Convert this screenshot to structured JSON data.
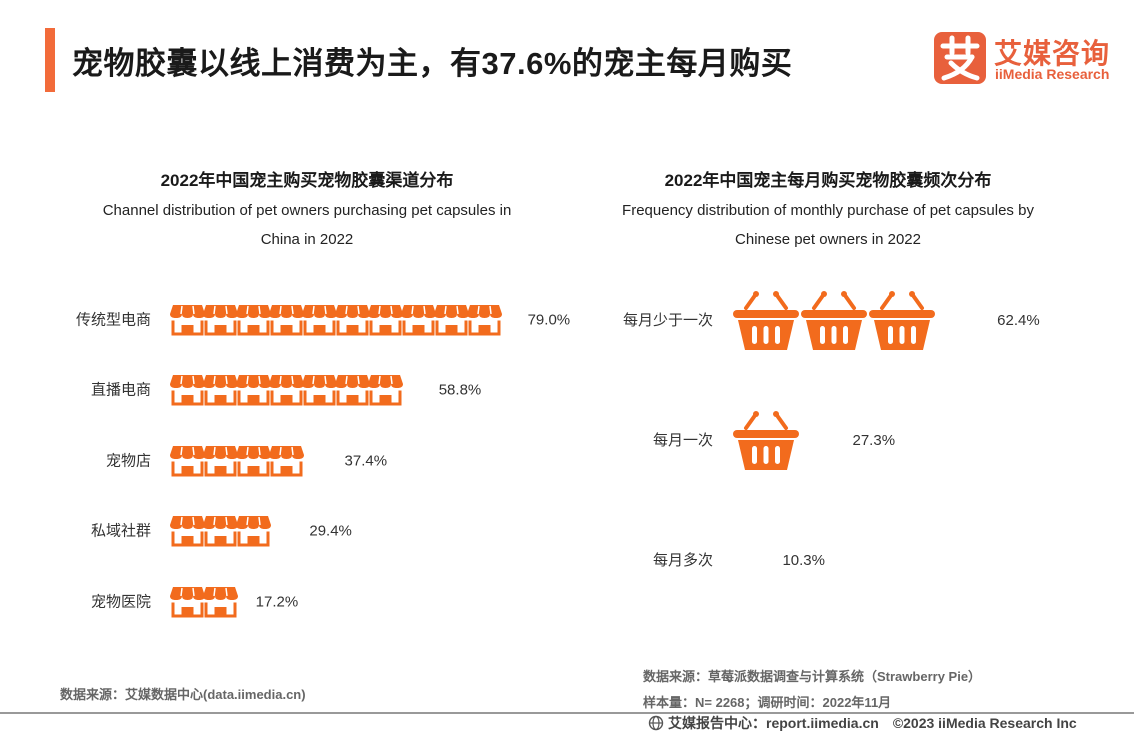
{
  "header": {
    "title": "宠物胶囊以线上消费为主，有37.6%的宠主每月购买"
  },
  "logo": {
    "glyph": "艾",
    "name_cn": "艾媒咨询",
    "name_en": "iiMedia Research"
  },
  "chart_data": [
    {
      "type": "bar",
      "style": "pictograph",
      "icon": "storefront-icon",
      "title": "2022年中国宠主购买宠物胶囊渠道分布",
      "subtitle": "Channel distribution of pet owners purchasing pet capsules in China in 2022",
      "subtitle_lines": [
        "Channel distribution of pet owners purchasing pet capsules in",
        "China in 2022"
      ],
      "categories": [
        "传统型电商",
        "直播电商",
        "宠物店",
        "私域社群",
        "宠物医院"
      ],
      "values": [
        79.0,
        58.8,
        37.4,
        29.4,
        17.2
      ],
      "value_labels": [
        "79.0%",
        "58.8%",
        "37.4%",
        "29.4%",
        "17.2%"
      ],
      "unit": "%",
      "icon_value": 7.5,
      "color": "#f26b1d"
    },
    {
      "type": "bar",
      "style": "pictograph",
      "icon": "basket-icon",
      "title": "2022年中国宠主每月购买宠物胶囊频次分布",
      "subtitle": "Frequency distribution of monthly purchase of pet capsules by Chinese pet owners in 2022",
      "subtitle_lines": [
        "Frequency distribution of monthly purchase of pet capsules by",
        "Chinese pet owners in 2022"
      ],
      "categories": [
        "每月少于一次",
        "每月一次",
        "每月多次"
      ],
      "values": [
        62.4,
        27.3,
        10.3
      ],
      "value_labels": [
        "62.4%",
        "27.3%",
        "10.3%"
      ],
      "unit": "%",
      "icon_value": 16.5,
      "color": "#f26b1d"
    }
  ],
  "sources": {
    "left": "数据来源：艾媒数据中心(data.iimedia.cn)",
    "right_line1": "数据来源：草莓派数据调查与计算系统（Strawberry Pie）",
    "right_line2": "样本量：N= 2268；调研时间：2022年11月"
  },
  "footer": {
    "report": "艾媒报告中心：report.iimedia.cn",
    "copyright": "©2023  iiMedia Research Inc"
  }
}
